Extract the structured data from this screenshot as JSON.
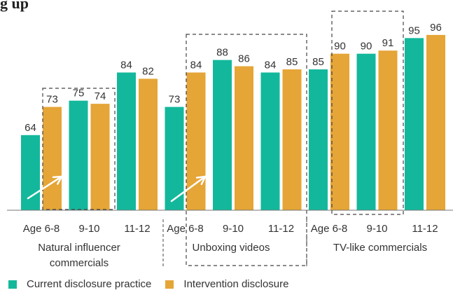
{
  "title": "g up",
  "colors": {
    "current": "#13b89c",
    "intervention": "#e5a537",
    "axis": "#777777",
    "text": "#333333",
    "box": "#444444",
    "arrow": "#ffffff"
  },
  "legend": {
    "current_label": "Current disclosure practice",
    "intervention_label": "Intervention disclosure"
  },
  "chart_data": {
    "type": "bar",
    "title": "g up",
    "series": [
      {
        "name": "Current disclosure practice",
        "values": [
          64,
          75,
          84,
          73,
          88,
          84,
          85,
          90,
          95
        ]
      },
      {
        "name": "Intervention disclosure",
        "values": [
          73,
          74,
          82,
          84,
          86,
          85,
          90,
          91,
          96
        ]
      }
    ],
    "categories": [
      "Age 6-8",
      "9-10",
      "11-12",
      "Age 6-8",
      "9-10",
      "11-12",
      "Age 6-8",
      "9-10",
      "11-12"
    ],
    "groups": [
      {
        "label": "Natural influencer commercials",
        "lines": [
          "Natural influencer",
          "commercials"
        ]
      },
      {
        "label": "Unboxing videos",
        "lines": [
          "Unboxing videos"
        ]
      },
      {
        "label": "TV-like commercials",
        "lines": [
          "TV-like commercials"
        ]
      }
    ],
    "ylim": [
      40,
      100
    ],
    "grid": false,
    "legend_position": "bottom-left"
  }
}
